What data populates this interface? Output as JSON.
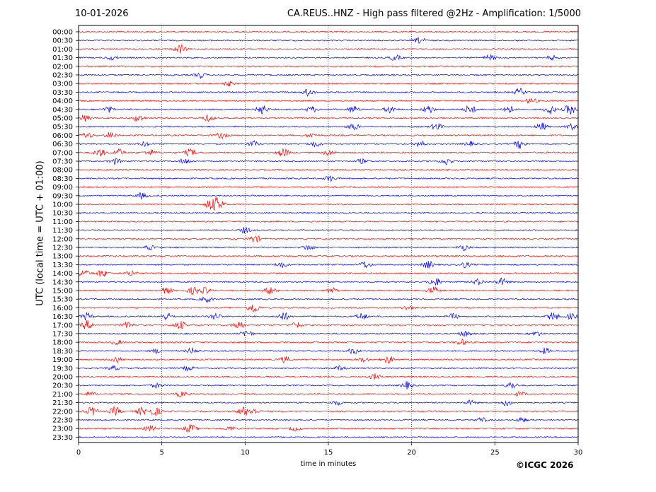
{
  "header": {
    "date": "10-01-2026",
    "title": "CA.REUS..HNZ - High pass filtered @2Hz - Amplification: 1/5000"
  },
  "footer": {
    "copyright": "©ICGC 2026"
  },
  "chart_data": {
    "type": "line",
    "title": "CA.REUS..HNZ - High pass filtered @2Hz - Amplification: 1/5000",
    "xlabel": "time in minutes",
    "ylabel": "UTC (local time = UTC + 01:00)",
    "xlim": [
      0,
      30
    ],
    "x_ticks": [
      0,
      5,
      10,
      15,
      20,
      25,
      30
    ],
    "y_ticks": [
      "00:00",
      "00:30",
      "01:00",
      "01:30",
      "02:00",
      "02:30",
      "03:00",
      "03:30",
      "04:00",
      "04:30",
      "05:00",
      "05:30",
      "06:00",
      "06:30",
      "07:00",
      "07:30",
      "08:00",
      "08:30",
      "09:00",
      "09:30",
      "10:00",
      "10:30",
      "11:00",
      "11:30",
      "12:00",
      "12:30",
      "13:00",
      "13:30",
      "14:00",
      "14:30",
      "15:00",
      "15:30",
      "16:00",
      "16:30",
      "17:00",
      "17:30",
      "18:00",
      "18:30",
      "19:00",
      "19:30",
      "20:00",
      "20:30",
      "21:00",
      "21:30",
      "22:00",
      "22:30",
      "23:00",
      "23:30"
    ],
    "grid": "vertical dotted at x ticks",
    "colors": {
      "even_trace": "#ff0000",
      "odd_trace": "#0000ff",
      "frame": "#000000"
    },
    "series_bursts": [
      {
        "row": 1,
        "bursts": [
          [
            20.5,
            4
          ]
        ]
      },
      {
        "row": 2,
        "bursts": [
          [
            6.1,
            6
          ]
        ]
      },
      {
        "row": 3,
        "bursts": [
          [
            2,
            3
          ],
          [
            19,
            4
          ],
          [
            24.7,
            4
          ],
          [
            28.5,
            3
          ]
        ]
      },
      {
        "row": 5,
        "bursts": [
          [
            7.3,
            4
          ]
        ]
      },
      {
        "row": 6,
        "bursts": [
          [
            9,
            3
          ]
        ]
      },
      {
        "row": 7,
        "bursts": [
          [
            13.8,
            5
          ],
          [
            26.5,
            5
          ]
        ]
      },
      {
        "row": 8,
        "bursts": [
          [
            27.2,
            4
          ]
        ]
      },
      {
        "row": 9,
        "bursts": [
          [
            1.8,
            4
          ],
          [
            11,
            7
          ],
          [
            14,
            4
          ],
          [
            16.5,
            5
          ],
          [
            18.7,
            5
          ],
          [
            21,
            6
          ],
          [
            23.5,
            6
          ],
          [
            25.8,
            6
          ],
          [
            28.3,
            6
          ],
          [
            29.5,
            7
          ]
        ]
      },
      {
        "row": 10,
        "bursts": [
          [
            0.4,
            5
          ],
          [
            3.6,
            5
          ],
          [
            7.8,
            4
          ]
        ]
      },
      {
        "row": 11,
        "bursts": [
          [
            16.5,
            5
          ],
          [
            21.5,
            5
          ],
          [
            27.8,
            5
          ],
          [
            29.6,
            4
          ]
        ]
      },
      {
        "row": 12,
        "bursts": [
          [
            0.5,
            4
          ],
          [
            1.9,
            4
          ],
          [
            8.6,
            4
          ],
          [
            14,
            3
          ]
        ]
      },
      {
        "row": 13,
        "bursts": [
          [
            4,
            3
          ],
          [
            10.5,
            4
          ],
          [
            14.2,
            4
          ],
          [
            20.5,
            4
          ],
          [
            23.5,
            3
          ],
          [
            26.5,
            6
          ]
        ]
      },
      {
        "row": 14,
        "bursts": [
          [
            1.3,
            5
          ],
          [
            2.4,
            5
          ],
          [
            4.3,
            4
          ],
          [
            6.7,
            5
          ],
          [
            12.3,
            6
          ],
          [
            15,
            4
          ]
        ]
      },
      {
        "row": 15,
        "bursts": [
          [
            2.2,
            4
          ],
          [
            6.4,
            4
          ],
          [
            17,
            3
          ],
          [
            22.1,
            5
          ]
        ]
      },
      {
        "row": 17,
        "bursts": [
          [
            15.1,
            4
          ]
        ]
      },
      {
        "row": 19,
        "bursts": [
          [
            3.8,
            4
          ]
        ]
      },
      {
        "row": 20,
        "bursts": [
          [
            7.9,
            7
          ],
          [
            8.4,
            9
          ]
        ]
      },
      {
        "row": 23,
        "bursts": [
          [
            10,
            4
          ]
        ]
      },
      {
        "row": 24,
        "bursts": [
          [
            10.6,
            5
          ]
        ]
      },
      {
        "row": 25,
        "bursts": [
          [
            4.3,
            3
          ],
          [
            13.8,
            4
          ],
          [
            23.1,
            4
          ]
        ]
      },
      {
        "row": 27,
        "bursts": [
          [
            12.2,
            4
          ],
          [
            17.2,
            5
          ],
          [
            21,
            5
          ],
          [
            23.2,
            4
          ]
        ]
      },
      {
        "row": 28,
        "bursts": [
          [
            0.3,
            5
          ],
          [
            1.4,
            5
          ],
          [
            3.2,
            4
          ]
        ]
      },
      {
        "row": 29,
        "bursts": [
          [
            21.4,
            6
          ],
          [
            24,
            4
          ],
          [
            25.4,
            5
          ]
        ]
      },
      {
        "row": 30,
        "bursts": [
          [
            5.3,
            4
          ],
          [
            6.9,
            5
          ],
          [
            7.6,
            4
          ],
          [
            11.5,
            5
          ],
          [
            15.2,
            4
          ],
          [
            21.3,
            5
          ]
        ]
      },
      {
        "row": 31,
        "bursts": [
          [
            7.7,
            4
          ]
        ]
      },
      {
        "row": 32,
        "bursts": [
          [
            10.5,
            7
          ],
          [
            19.8,
            3
          ]
        ]
      },
      {
        "row": 33,
        "bursts": [
          [
            0.5,
            5
          ],
          [
            5.3,
            5
          ],
          [
            8.2,
            5
          ],
          [
            12.3,
            6
          ],
          [
            17,
            5
          ],
          [
            22.5,
            4
          ],
          [
            28.5,
            6
          ],
          [
            29.6,
            4
          ]
        ]
      },
      {
        "row": 34,
        "bursts": [
          [
            0.5,
            6
          ],
          [
            3,
            5
          ],
          [
            6.1,
            6
          ],
          [
            9.6,
            6
          ],
          [
            13.1,
            4
          ]
        ]
      },
      {
        "row": 35,
        "bursts": [
          [
            10.1,
            5
          ],
          [
            23.2,
            4
          ],
          [
            27.5,
            3
          ]
        ]
      },
      {
        "row": 36,
        "bursts": [
          [
            2.3,
            3
          ],
          [
            23,
            4
          ]
        ]
      },
      {
        "row": 37,
        "bursts": [
          [
            4.7,
            3
          ],
          [
            6.8,
            4
          ],
          [
            16.5,
            4
          ],
          [
            28,
            4
          ]
        ]
      },
      {
        "row": 38,
        "bursts": [
          [
            2.3,
            4
          ],
          [
            12.4,
            4
          ],
          [
            17.1,
            3
          ],
          [
            18.6,
            5
          ]
        ]
      },
      {
        "row": 39,
        "bursts": [
          [
            2.1,
            3
          ],
          [
            6.6,
            3
          ],
          [
            15.7,
            3
          ]
        ]
      },
      {
        "row": 40,
        "bursts": [
          [
            17.8,
            4
          ]
        ]
      },
      {
        "row": 41,
        "bursts": [
          [
            4.7,
            3
          ],
          [
            19.7,
            5
          ],
          [
            26,
            5
          ]
        ]
      },
      {
        "row": 42,
        "bursts": [
          [
            0.7,
            3
          ],
          [
            6.2,
            4
          ],
          [
            26.5,
            3
          ]
        ]
      },
      {
        "row": 43,
        "bursts": [
          [
            15.5,
            3
          ],
          [
            23.5,
            3
          ],
          [
            25.7,
            4
          ]
        ]
      },
      {
        "row": 44,
        "bursts": [
          [
            0.8,
            6
          ],
          [
            2.2,
            6
          ],
          [
            3.8,
            5
          ],
          [
            4.6,
            6
          ],
          [
            9.9,
            6
          ],
          [
            10.5,
            4
          ]
        ]
      },
      {
        "row": 45,
        "bursts": [
          [
            24.2,
            3
          ],
          [
            26.6,
            3
          ]
        ]
      },
      {
        "row": 46,
        "bursts": [
          [
            4.3,
            4
          ],
          [
            6.7,
            6
          ],
          [
            9.1,
            3
          ],
          [
            13,
            3
          ]
        ]
      }
    ]
  }
}
